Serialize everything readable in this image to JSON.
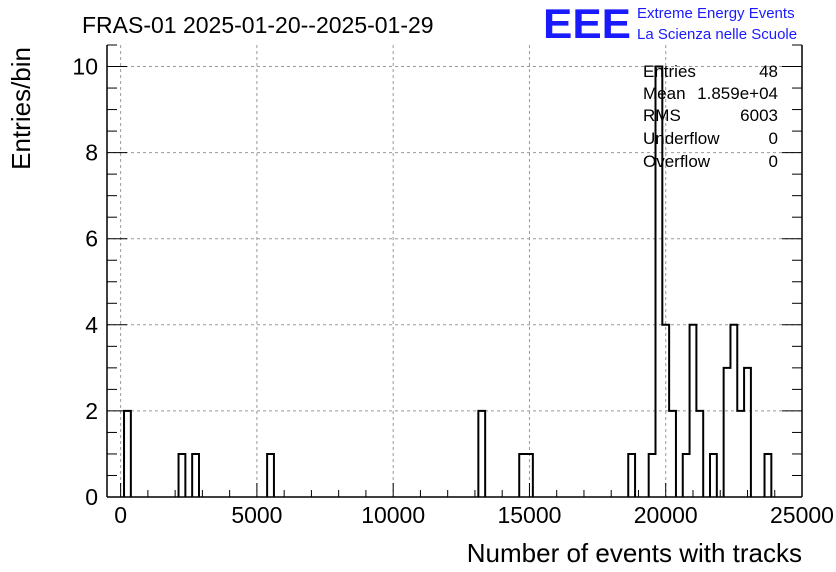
{
  "logo": {
    "letters": "EEE",
    "line1": "Extreme Energy Events",
    "line2": "La Scienza nelle Scuole",
    "color": "#1a1aff"
  },
  "stats": {
    "entries_label": "Entries",
    "entries_value": "48",
    "mean_label": "Mean",
    "mean_value": "1.859e+04",
    "rms_label": "RMS",
    "rms_value": "6003",
    "underflow_label": "Underflow",
    "underflow_value": "0",
    "overflow_label": "Overflow",
    "overflow_value": "0"
  },
  "chart_data": {
    "type": "bar",
    "title": "FRAS-01 2025-01-20--2025-01-29",
    "xlabel": "Number of events with tracks",
    "ylabel": "Entries/bin",
    "xlim": [
      -500,
      25000
    ],
    "ylim": [
      0,
      10.5
    ],
    "bin_width": 250,
    "xticks": [
      0,
      5000,
      10000,
      15000,
      20000,
      25000
    ],
    "yticks": [
      0,
      2,
      4,
      6,
      8,
      10
    ],
    "grid": true,
    "line_color": "#000000",
    "bins": [
      {
        "x": 250,
        "count": 2
      },
      {
        "x": 2250,
        "count": 1
      },
      {
        "x": 2750,
        "count": 1
      },
      {
        "x": 5500,
        "count": 1
      },
      {
        "x": 13250,
        "count": 2
      },
      {
        "x": 14750,
        "count": 1
      },
      {
        "x": 15000,
        "count": 1
      },
      {
        "x": 18750,
        "count": 1
      },
      {
        "x": 19500,
        "count": 1
      },
      {
        "x": 19750,
        "count": 10
      },
      {
        "x": 20000,
        "count": 4
      },
      {
        "x": 20250,
        "count": 2
      },
      {
        "x": 20750,
        "count": 1
      },
      {
        "x": 21000,
        "count": 4
      },
      {
        "x": 21250,
        "count": 2
      },
      {
        "x": 21750,
        "count": 1
      },
      {
        "x": 22250,
        "count": 3
      },
      {
        "x": 22500,
        "count": 4
      },
      {
        "x": 22750,
        "count": 2
      },
      {
        "x": 23000,
        "count": 3
      },
      {
        "x": 23750,
        "count": 1
      }
    ]
  }
}
